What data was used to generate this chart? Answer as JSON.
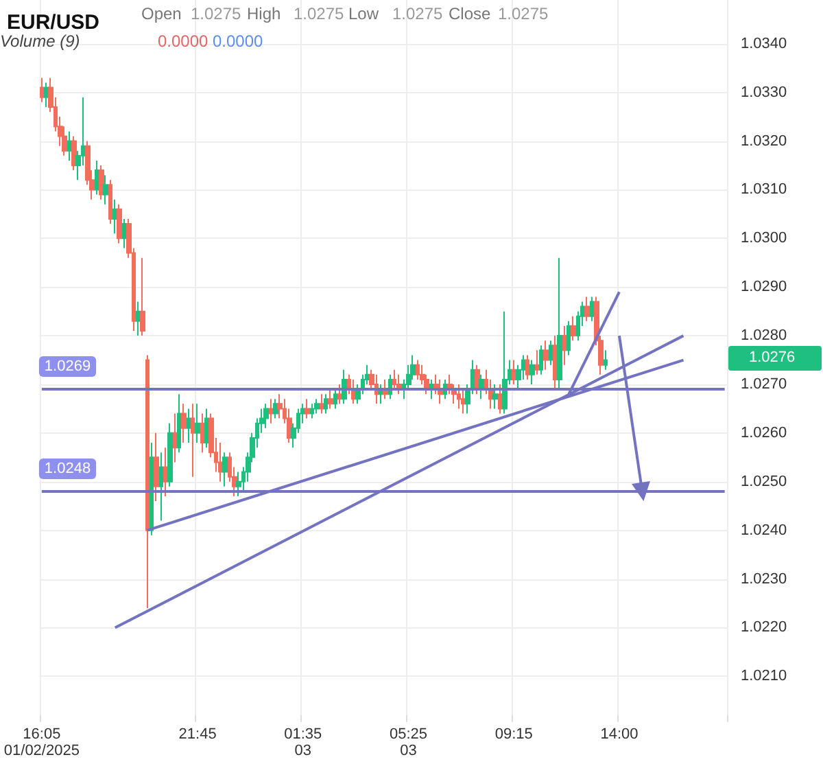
{
  "chart_data": {
    "type": "candlestick",
    "title": "EUR/USD",
    "annotations": [
      "Open",
      "1.0275",
      "High",
      "1.0275",
      "Low",
      "1.0275",
      "Close",
      "1.0275",
      "Volume (9)",
      "0.0000",
      "0.0000",
      "1.0276"
    ],
    "colors": [
      "#f26d5b",
      "#1fbf80",
      "#f26d5b",
      "#f26d5b",
      "#f26d5b",
      "#f26d5b",
      "#1fbf80",
      "#f26d5b",
      "#1fbf80",
      "#1fbf80",
      "#f26d5b",
      "#f26d5b",
      "#1fbf80",
      "#f26d5b",
      "#1fbf80",
      "#f26d5b",
      "#1fbf80",
      "#f26d5b",
      "#1fbf80",
      "#f26d5b",
      "#f26d5b",
      "#1fbf80",
      "#f26d5b",
      "#f26d5b",
      "#1fbf80",
      "#f26d5b",
      "#1fbf80",
      "#f26d5b",
      "#1fbf80",
      "#f26d5b",
      "#1fbf80",
      "#f26d5b",
      "#1fbf80",
      "#f26d5b",
      "#1fbf80",
      "#f26d5b",
      "#1fbf80",
      "#f26d5b",
      "#f26d5b",
      "#f26d5b",
      "#1fbf80",
      "#f26d5b",
      "#f26d5b",
      "#1fbf80",
      "#1fbf80",
      "#1fbf80",
      "#1fbf80",
      "#1fbf80",
      "#1fbf80",
      "#1fbf80",
      "#f26d5b",
      "#1fbf80",
      "#f26d5b",
      "#f26d5b",
      "#f26d5b",
      "#1fbf80",
      "#1fbf80",
      "#1fbf80",
      "#f26d5b",
      "#1fbf80",
      "#1fbf80",
      "#f26d5b",
      "#1fbf80",
      "#f26d5b",
      "#1fbf80",
      "#f26d5b",
      "#1fbf80",
      "#f26d5b",
      "#f26d5b",
      "#1fbf80",
      "#1fbf80",
      "#1fbf80",
      "#f26d5b",
      "#f26d5b",
      "#1fbf80",
      "#f26d5b",
      "#1fbf80",
      "#f26d5b",
      "#f26d5b",
      "#1fbf80",
      "#1fbf80",
      "#1fbf80",
      "#f26d5b",
      "#f26d5b",
      "#f26d5b",
      "#1fbf80",
      "#f26d5b",
      "#f26d5b",
      "#1fbf80",
      "#f26d5b",
      "#f26d5b",
      "#f26d5b",
      "#f26d5b",
      "#1fbf80",
      "#1fbf80",
      "#f26d5b",
      "#1fbf80",
      "#f26d5b",
      "#f26d5b",
      "#1fbf80",
      "#f26d5b",
      "#1fbf80",
      "#1fbf80",
      "#f26d5b",
      "#1fbf80",
      "#1fbf80",
      "#f26d5b",
      "#1fbf80",
      "#f26d5b",
      "#1fbf80",
      "#f26d5b",
      "#1fbf80",
      "#f26d5b",
      "#1fbf80",
      "#f26d5b",
      "#1fbf80",
      "#f26d5b",
      "#1fbf80",
      "#1fbf80",
      "#f26d5b",
      "#1fbf80",
      "#f26d5b",
      "#f26d5b",
      "#1fbf80",
      null,
      null,
      null,
      null,
      null,
      null,
      null,
      null,
      null,
      null,
      null,
      null,
      null,
      null,
      null,
      null,
      null,
      null,
      null,
      null,
      null,
      null,
      null,
      null,
      null,
      null
    ],
    "grid": true,
    "ylim": [
      1.0202,
      1.0349
    ],
    "yticks": [
      {
        "value": 1.021,
        "label": "1.0210"
      },
      {
        "value": 1.022,
        "label": "1.0220"
      },
      {
        "value": 1.023,
        "label": "1.0230"
      },
      {
        "value": 1.024,
        "label": "1.0240"
      },
      {
        "value": 1.025,
        "label": "1.0250"
      },
      {
        "value": 1.026,
        "label": "1.0260"
      },
      {
        "value": 1.027,
        "label": "1.0270"
      },
      {
        "value": 1.028,
        "label": "1.0280"
      },
      {
        "value": 1.029,
        "label": "1.0290"
      },
      {
        "value": 1.03,
        "label": "1.0300"
      },
      {
        "value": 1.031,
        "label": "1.0310"
      },
      {
        "value": 1.032,
        "label": "1.0320"
      },
      {
        "value": 1.033,
        "label": "1.0330"
      },
      {
        "value": 1.034,
        "label": "1.0340"
      }
    ],
    "categories": [
      "16:05\n01/02/2025",
      null,
      null,
      null,
      null,
      null,
      null,
      null,
      null,
      null,
      null,
      null,
      null,
      null,
      null,
      null,
      null,
      null,
      null,
      null,
      null,
      null,
      null,
      null,
      null,
      null,
      null,
      null,
      null,
      null,
      null,
      null,
      null,
      null,
      "21:45",
      null,
      null,
      null,
      null,
      null,
      null,
      null,
      null,
      null,
      null,
      null,
      null,
      null,
      null,
      null,
      null,
      null,
      null,
      null,
      null,
      null,
      null,
      "01:35\n03",
      null,
      null,
      null,
      null,
      null,
      null,
      null,
      null,
      null,
      null,
      null,
      null,
      null,
      null,
      null,
      null,
      null,
      null,
      null,
      null,
      null,
      null,
      "05:25\n03",
      null,
      null,
      null,
      null,
      null,
      null,
      null,
      null,
      null,
      null,
      null,
      null,
      null,
      null,
      null,
      null,
      null,
      null,
      null,
      null,
      null,
      null,
      "09:15",
      null,
      null,
      null,
      null,
      null,
      null,
      null,
      null,
      null,
      null,
      null,
      null,
      null,
      null,
      null,
      null,
      null,
      null,
      null,
      null,
      null,
      null,
      "14:00",
      null,
      null,
      null,
      null,
      null,
      null,
      null,
      null,
      null,
      null,
      null,
      null,
      null,
      null,
      null,
      null,
      null,
      null,
      null,
      null,
      null,
      null,
      null
    ],
    "ohlc": [
      [
        1.0331,
        1.0333,
        1.0328,
        1.0329
      ],
      [
        1.0329,
        1.0332,
        1.0327,
        1.0331
      ],
      [
        1.0331,
        1.0333,
        1.0326,
        1.0327
      ],
      [
        1.0327,
        1.0329,
        1.0322,
        1.0323
      ],
      [
        1.0323,
        1.0325,
        1.0319,
        1.0321
      ],
      [
        1.0321,
        1.0323,
        1.0317,
        1.0318
      ],
      [
        1.0318,
        1.0322,
        1.0316,
        1.032
      ],
      [
        1.032,
        1.0321,
        1.0314,
        1.0315
      ],
      [
        1.0315,
        1.0318,
        1.0312,
        1.0317
      ],
      [
        1.0317,
        1.0329,
        1.0315,
        1.0319
      ],
      [
        1.0319,
        1.032,
        1.0311,
        1.0312
      ],
      [
        1.0312,
        1.0314,
        1.0308,
        1.031
      ],
      [
        1.031,
        1.0316,
        1.0309,
        1.0314
      ],
      [
        1.0314,
        1.0315,
        1.0308,
        1.0309
      ],
      [
        1.0309,
        1.0313,
        1.0307,
        1.0311
      ],
      [
        1.0311,
        1.0312,
        1.0303,
        1.0304
      ],
      [
        1.0304,
        1.0308,
        1.0301,
        1.0306
      ],
      [
        1.0306,
        1.0307,
        1.0299,
        1.03
      ],
      [
        1.03,
        1.0304,
        1.0298,
        1.0303
      ],
      [
        1.0303,
        1.0304,
        1.0296,
        1.0297
      ],
      [
        1.0297,
        1.0298,
        1.0281,
        1.0283
      ],
      [
        1.0283,
        1.0287,
        1.028,
        1.0285
      ],
      [
        1.0285,
        1.0296,
        1.028,
        1.0281
      ],
      [
        1.0275,
        1.0276,
        1.0224,
        1.024
      ],
      [
        1.024,
        1.0258,
        1.0239,
        1.0255
      ],
      [
        1.0255,
        1.026,
        1.0246,
        1.0249
      ],
      [
        1.0249,
        1.0256,
        1.0242,
        1.0253
      ],
      [
        1.0253,
        1.0257,
        1.0247,
        1.025
      ],
      [
        1.025,
        1.0262,
        1.0249,
        1.026
      ],
      [
        1.026,
        1.0264,
        1.0254,
        1.0257
      ],
      [
        1.0257,
        1.0268,
        1.0256,
        1.0264
      ],
      [
        1.0264,
        1.0266,
        1.0258,
        1.0261
      ],
      [
        1.0261,
        1.0265,
        1.0258,
        1.0263
      ],
      [
        1.0263,
        1.0266,
        1.0251,
        1.026
      ],
      [
        1.026,
        1.0266,
        1.0258,
        1.0262
      ],
      [
        1.0262,
        1.0264,
        1.0256,
        1.0258
      ],
      [
        1.0258,
        1.0265,
        1.0257,
        1.0263
      ],
      [
        1.0263,
        1.0264,
        1.0255,
        1.0256
      ],
      [
        1.0256,
        1.0259,
        1.0252,
        1.0254
      ],
      [
        1.0254,
        1.0258,
        1.025,
        1.0252
      ],
      [
        1.0252,
        1.0256,
        1.0249,
        1.0255
      ],
      [
        1.0255,
        1.0256,
        1.025,
        1.0251
      ],
      [
        1.0251,
        1.0253,
        1.0247,
        1.0249
      ],
      [
        1.0249,
        1.0252,
        1.0247,
        1.025
      ],
      [
        1.025,
        1.0253,
        1.0248,
        1.0252
      ],
      [
        1.0252,
        1.0256,
        1.025,
        1.0255
      ],
      [
        1.0255,
        1.026,
        1.0254,
        1.0259
      ],
      [
        1.0259,
        1.0263,
        1.0257,
        1.0262
      ],
      [
        1.0262,
        1.0265,
        1.026,
        1.0263
      ],
      [
        1.0263,
        1.0266,
        1.0261,
        1.0265
      ],
      [
        1.0265,
        1.0267,
        1.0262,
        1.0264
      ],
      [
        1.0264,
        1.0267,
        1.0263,
        1.0266
      ],
      [
        1.0266,
        1.0268,
        1.0263,
        1.0265
      ],
      [
        1.0265,
        1.0267,
        1.0262,
        1.0263
      ],
      [
        1.0263,
        1.0265,
        1.0258,
        1.0259
      ],
      [
        1.0259,
        1.0262,
        1.0257,
        1.0261
      ],
      [
        1.0261,
        1.0265,
        1.026,
        1.0264
      ],
      [
        1.0264,
        1.0266,
        1.0262,
        1.0265
      ],
      [
        1.0265,
        1.0267,
        1.0263,
        1.0264
      ],
      [
        1.0264,
        1.0266,
        1.0263,
        1.0265
      ],
      [
        1.0265,
        1.0267,
        1.0264,
        1.0266
      ],
      [
        1.0266,
        1.0268,
        1.0264,
        1.0265
      ],
      [
        1.0265,
        1.0268,
        1.0264,
        1.0267
      ],
      [
        1.0267,
        1.0269,
        1.0265,
        1.0266
      ],
      [
        1.0266,
        1.0269,
        1.0265,
        1.0268
      ],
      [
        1.0268,
        1.027,
        1.0266,
        1.0267
      ],
      [
        1.0267,
        1.0273,
        1.0266,
        1.0271
      ],
      [
        1.0271,
        1.0272,
        1.0268,
        1.0269
      ],
      [
        1.0269,
        1.0271,
        1.0266,
        1.0267
      ],
      [
        1.0267,
        1.027,
        1.0266,
        1.0269
      ],
      [
        1.0269,
        1.0272,
        1.0268,
        1.0271
      ],
      [
        1.0271,
        1.0274,
        1.027,
        1.0272
      ],
      [
        1.0272,
        1.0273,
        1.0269,
        1.027
      ],
      [
        1.027,
        1.0272,
        1.0266,
        1.0268
      ],
      [
        1.0268,
        1.027,
        1.0266,
        1.0269
      ],
      [
        1.0269,
        1.0271,
        1.0267,
        1.0268
      ],
      [
        1.0268,
        1.0272,
        1.0267,
        1.0271
      ],
      [
        1.0271,
        1.0273,
        1.0269,
        1.027
      ],
      [
        1.027,
        1.0272,
        1.0268,
        1.0269
      ],
      [
        1.0269,
        1.0271,
        1.0267,
        1.027
      ],
      [
        1.027,
        1.0274,
        1.0269,
        1.0272
      ],
      [
        1.0272,
        1.0276,
        1.0271,
        1.0274
      ],
      [
        1.0274,
        1.0275,
        1.0271,
        1.0272
      ],
      [
        1.0272,
        1.0274,
        1.027,
        1.0271
      ],
      [
        1.0271,
        1.0272,
        1.0268,
        1.0269
      ],
      [
        1.0269,
        1.0271,
        1.0267,
        1.027
      ],
      [
        1.027,
        1.0272,
        1.0268,
        1.0269
      ],
      [
        1.0269,
        1.0271,
        1.0266,
        1.0268
      ],
      [
        1.0268,
        1.0271,
        1.0267,
        1.027
      ],
      [
        1.027,
        1.0272,
        1.0268,
        1.0269
      ],
      [
        1.0269,
        1.027,
        1.0266,
        1.0268
      ],
      [
        1.0268,
        1.027,
        1.0265,
        1.0267
      ],
      [
        1.0267,
        1.0269,
        1.0264,
        1.0266
      ],
      [
        1.0266,
        1.027,
        1.0264,
        1.0269
      ],
      [
        1.0269,
        1.0275,
        1.0268,
        1.0273
      ],
      [
        1.0273,
        1.0274,
        1.0268,
        1.0269
      ],
      [
        1.0269,
        1.0272,
        1.0267,
        1.0271
      ],
      [
        1.0271,
        1.0273,
        1.0268,
        1.0269
      ],
      [
        1.0269,
        1.0271,
        1.0265,
        1.0267
      ],
      [
        1.0267,
        1.027,
        1.0265,
        1.0268
      ],
      [
        1.0268,
        1.027,
        1.0264,
        1.0265
      ],
      [
        1.0265,
        1.0285,
        1.0264,
        1.0271
      ],
      [
        1.0271,
        1.0275,
        1.027,
        1.0273
      ],
      [
        1.0273,
        1.0275,
        1.027,
        1.0271
      ],
      [
        1.0271,
        1.0274,
        1.0269,
        1.0273
      ],
      [
        1.0273,
        1.0276,
        1.0271,
        1.0275
      ],
      [
        1.0275,
        1.0276,
        1.0271,
        1.0272
      ],
      [
        1.0272,
        1.0275,
        1.027,
        1.0274
      ],
      [
        1.0274,
        1.0277,
        1.0272,
        1.0273
      ],
      [
        1.0273,
        1.0278,
        1.0272,
        1.0277
      ],
      [
        1.0277,
        1.0279,
        1.0273,
        1.0275
      ],
      [
        1.0275,
        1.0279,
        1.0274,
        1.0278
      ],
      [
        1.0278,
        1.028,
        1.0269,
        1.0271
      ],
      [
        1.0271,
        1.0296,
        1.0269,
        1.028
      ],
      [
        1.028,
        1.0282,
        1.0274,
        1.0277
      ],
      [
        1.0277,
        1.0283,
        1.0276,
        1.0282
      ],
      [
        1.0282,
        1.0284,
        1.0279,
        1.028
      ],
      [
        1.028,
        1.0285,
        1.0279,
        1.0284
      ],
      [
        1.0284,
        1.0287,
        1.0282,
        1.0286
      ],
      [
        1.0286,
        1.0288,
        1.0283,
        1.0284
      ],
      [
        1.0284,
        1.0288,
        1.0283,
        1.0287
      ],
      [
        1.0287,
        1.0288,
        1.0278,
        1.0279
      ],
      [
        1.0279,
        1.028,
        1.0272,
        1.0274
      ],
      [
        1.0274,
        1.0277,
        1.0273,
        1.0275
      ],
      null,
      null,
      null,
      null,
      null,
      null,
      null,
      null,
      null,
      null,
      null,
      null,
      null,
      null,
      null,
      null,
      null,
      null,
      null,
      null,
      null,
      null,
      null,
      null,
      null,
      null
    ],
    "series": [
      {
        "type": "line",
        "color": "#7373c2",
        "values": [
          null,
          null,
          null,
          null,
          null,
          null,
          null,
          null,
          null,
          null,
          null,
          null,
          null,
          null,
          null,
          null,
          1.022,
          null,
          null,
          null,
          null,
          null,
          null,
          null,
          null,
          null,
          null,
          null,
          null,
          null,
          null,
          null,
          null,
          null,
          null,
          null,
          null,
          null,
          null,
          null,
          null,
          null,
          null,
          null,
          null,
          null,
          null,
          null,
          null,
          null,
          null,
          null,
          null,
          null,
          null,
          null,
          null,
          null,
          null,
          null,
          null,
          null,
          null,
          null,
          null,
          null,
          null,
          null,
          null,
          null,
          null,
          null,
          null,
          null,
          null,
          null,
          null,
          null,
          null,
          null,
          null,
          null,
          null,
          null,
          null,
          null,
          null,
          null,
          null,
          null,
          null,
          null,
          null,
          null,
          null,
          null,
          null,
          null,
          null,
          null,
          null,
          null,
          null,
          null,
          null,
          null,
          null,
          null,
          null,
          null,
          null,
          null,
          null,
          null,
          null,
          null,
          null,
          null,
          null,
          null,
          null,
          null,
          null,
          null,
          null,
          null,
          null,
          null,
          null,
          null,
          null,
          null,
          null,
          null,
          null,
          null,
          null,
          null,
          null,
          null,
          1.028,
          null,
          null,
          null,
          null,
          null,
          null,
          null,
          null,
          null
        ]
      },
      {
        "type": "line",
        "color": "#7373c2",
        "values": [
          null,
          null,
          null,
          null,
          null,
          null,
          null,
          null,
          null,
          null,
          null,
          null,
          null,
          null,
          null,
          null,
          null,
          null,
          null,
          null,
          null,
          null,
          null,
          1.024,
          null,
          null,
          null,
          null,
          null,
          null,
          null,
          null,
          null,
          null,
          null,
          null,
          null,
          null,
          null,
          null,
          null,
          null,
          null,
          null,
          null,
          null,
          null,
          null,
          null,
          null,
          null,
          null,
          null,
          null,
          null,
          null,
          null,
          null,
          null,
          null,
          null,
          null,
          null,
          null,
          null,
          null,
          null,
          null,
          null,
          null,
          null,
          null,
          null,
          null,
          null,
          null,
          null,
          null,
          null,
          null,
          null,
          null,
          null,
          null,
          null,
          null,
          null,
          null,
          null,
          null,
          null,
          null,
          null,
          null,
          null,
          null,
          null,
          null,
          null,
          null,
          null,
          null,
          null,
          null,
          null,
          null,
          null,
          null,
          null,
          null,
          null,
          null,
          null,
          null,
          null,
          null,
          null,
          null,
          null,
          null,
          null,
          null,
          null,
          null,
          null,
          null,
          null,
          null,
          null,
          null,
          null,
          null,
          null,
          null,
          null,
          null,
          null,
          null,
          null,
          null,
          1.0275,
          null,
          null,
          null,
          null,
          null,
          null,
          null,
          null,
          null
        ]
      },
      {
        "type": "line",
        "color": "#7373c2",
        "values": [
          null,
          null,
          null,
          null,
          null,
          null,
          null,
          null,
          null,
          null,
          null,
          null,
          null,
          null,
          null,
          null,
          null,
          null,
          null,
          null,
          null,
          null,
          null,
          null,
          null,
          null,
          null,
          null,
          null,
          null,
          null,
          null,
          null,
          null,
          null,
          null,
          null,
          null,
          null,
          null,
          null,
          null,
          null,
          null,
          null,
          null,
          null,
          null,
          null,
          null,
          null,
          null,
          null,
          null,
          null,
          null,
          null,
          null,
          null,
          null,
          null,
          null,
          null,
          null,
          null,
          null,
          null,
          null,
          null,
          null,
          null,
          null,
          null,
          null,
          null,
          null,
          null,
          null,
          null,
          null,
          null,
          null,
          null,
          null,
          null,
          null,
          null,
          null,
          null,
          null,
          null,
          null,
          null,
          null,
          null,
          null,
          null,
          null,
          null,
          null,
          null,
          null,
          null,
          null,
          null,
          null,
          null,
          null,
          null,
          null,
          null,
          null,
          null,
          null,
          null,
          1.0268,
          null,
          null,
          null,
          null,
          null,
          null,
          null,
          null,
          null,
          null,
          1.0289,
          null,
          null,
          null,
          null,
          null,
          null,
          null,
          null,
          null,
          null,
          null,
          null,
          null,
          null,
          null,
          null,
          null,
          null,
          null,
          null,
          null,
          null,
          null
        ]
      },
      {
        "type": "line",
        "color": "#7373c2",
        "marker": "triangle",
        "values": [
          null,
          null,
          null,
          null,
          null,
          null,
          null,
          null,
          null,
          null,
          null,
          null,
          null,
          null,
          null,
          null,
          null,
          null,
          null,
          null,
          null,
          null,
          null,
          null,
          null,
          null,
          null,
          null,
          null,
          null,
          null,
          null,
          null,
          null,
          null,
          null,
          null,
          null,
          null,
          null,
          null,
          null,
          null,
          null,
          null,
          null,
          null,
          null,
          null,
          null,
          null,
          null,
          null,
          null,
          null,
          null,
          null,
          null,
          null,
          null,
          null,
          null,
          null,
          null,
          null,
          null,
          null,
          null,
          null,
          null,
          null,
          null,
          null,
          null,
          null,
          null,
          null,
          null,
          null,
          null,
          null,
          null,
          null,
          null,
          null,
          null,
          null,
          null,
          null,
          null,
          null,
          null,
          null,
          null,
          null,
          null,
          null,
          null,
          null,
          null,
          null,
          null,
          null,
          null,
          null,
          null,
          null,
          null,
          null,
          null,
          null,
          null,
          null,
          null,
          null,
          null,
          null,
          null,
          null,
          null,
          null,
          null,
          null,
          null,
          null,
          null,
          1.028,
          null,
          null,
          null,
          null,
          1.0248,
          null,
          null,
          null,
          null,
          null,
          null,
          null,
          null,
          null,
          null,
          null,
          null,
          null,
          null,
          null,
          null,
          null,
          null
        ]
      }
    ],
    "ref_lines": [
      {
        "axis": "y",
        "value": 1.0269,
        "label": "1.0269",
        "color": "#7373c2"
      },
      {
        "axis": "y",
        "value": 1.0248,
        "label": "1.0248",
        "color": "#7373c2"
      }
    ]
  }
}
